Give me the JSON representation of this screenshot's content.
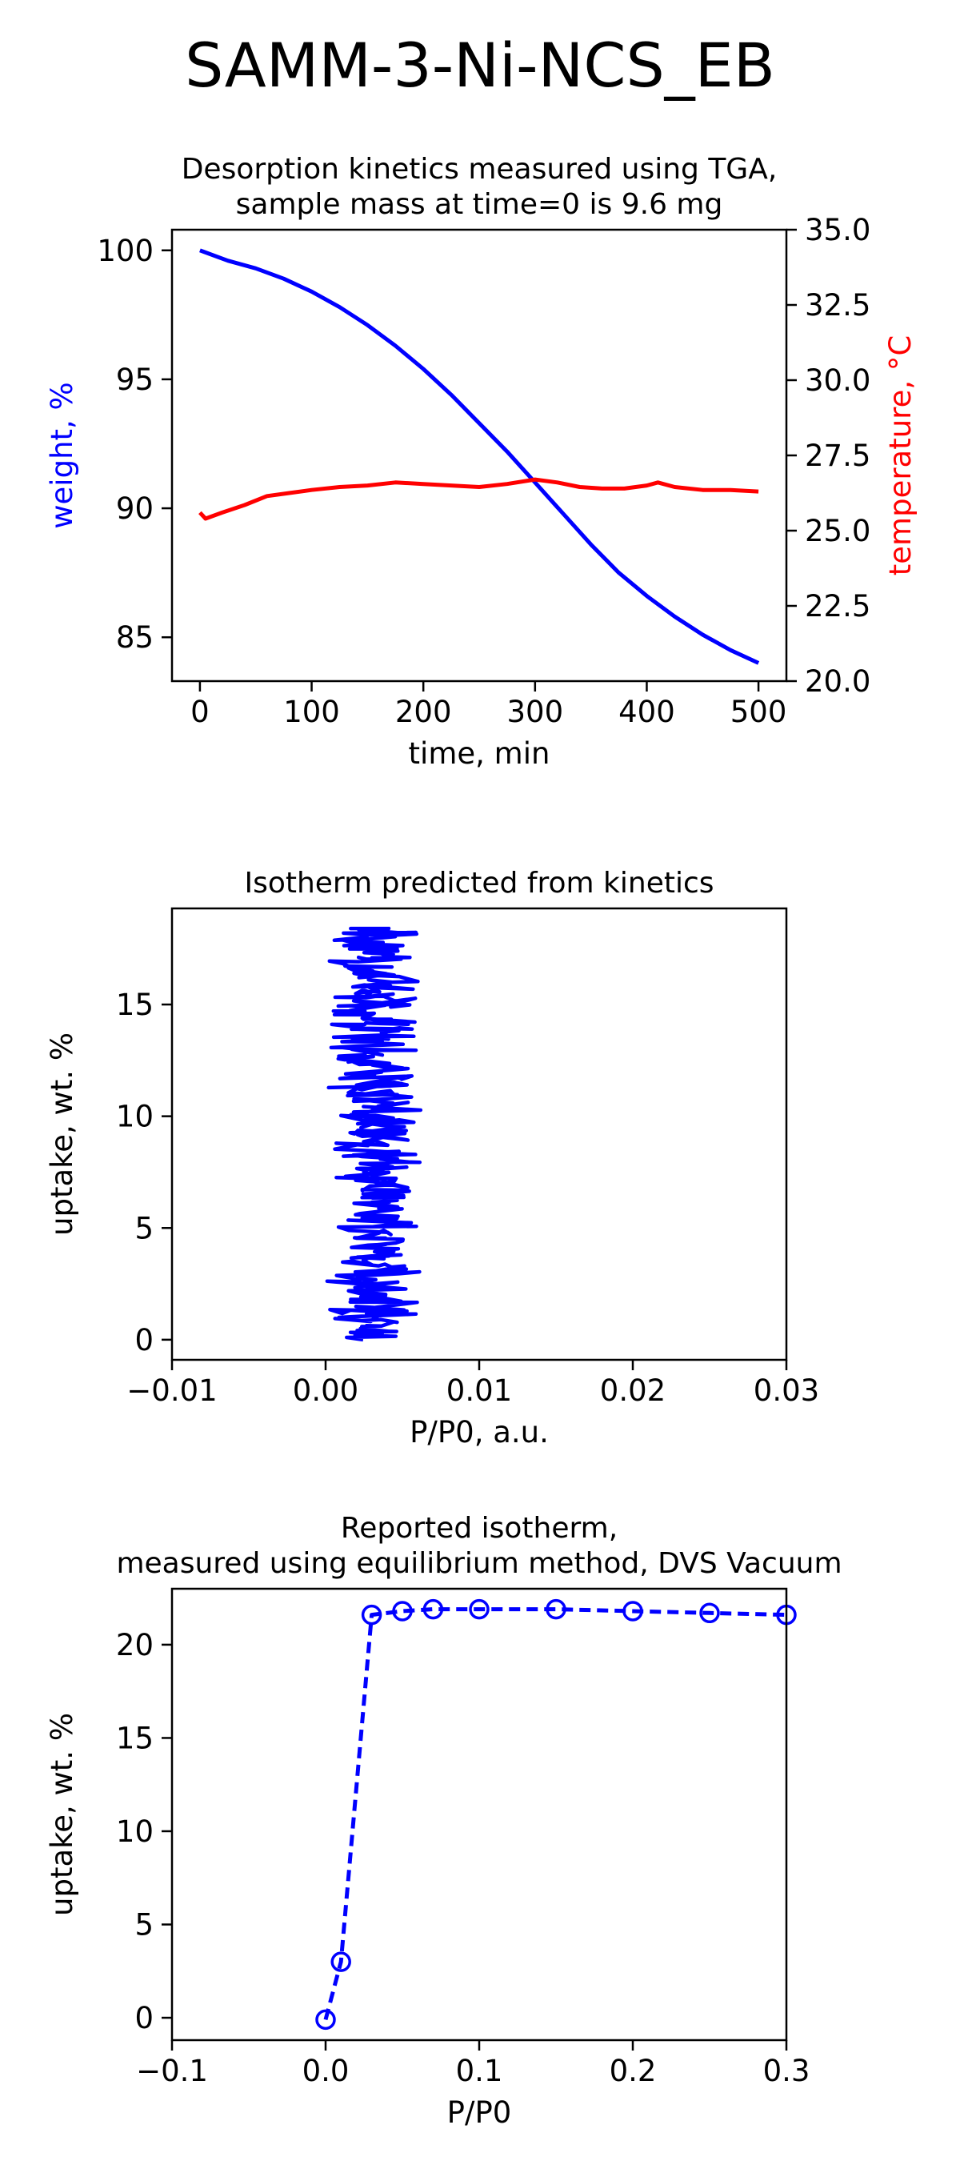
{
  "figure_title": "SAMM-3-Ni-NCS_EB",
  "colors": {
    "blue": "#0000ff",
    "red": "#ff0000",
    "axis": "#000000"
  },
  "chart_data": [
    {
      "type": "line",
      "title_lines": [
        "Desorption kinetics measured using TGA,",
        "sample mass at time=0 is 9.6 mg"
      ],
      "xlabel": "time, min",
      "ylabel": "weight, %",
      "ylabel_right": "temperature, °C",
      "xlim": [
        -25,
        525
      ],
      "ylim": [
        83.3,
        100.8
      ],
      "ylim_right": [
        20,
        35
      ],
      "xticks": [
        0,
        100,
        200,
        300,
        400,
        500
      ],
      "yticks": [
        85,
        90,
        95,
        100
      ],
      "yticks_right": [
        "20.0",
        "22.5",
        "25.0",
        "27.5",
        "30.0",
        "32.5",
        "35.0"
      ],
      "grid": false,
      "series": [
        {
          "axis": "left",
          "color": "#0000ff",
          "x": [
            0,
            25,
            50,
            75,
            100,
            125,
            150,
            175,
            200,
            225,
            250,
            275,
            300,
            325,
            350,
            375,
            400,
            425,
            450,
            475,
            500
          ],
          "y": [
            100,
            99.6,
            99.3,
            98.9,
            98.4,
            97.8,
            97.1,
            96.3,
            95.4,
            94.4,
            93.3,
            92.2,
            91.0,
            89.8,
            88.6,
            87.5,
            86.6,
            85.8,
            85.1,
            84.5,
            84.0
          ]
        },
        {
          "axis": "right",
          "color": "#ff0000",
          "x": [
            0,
            5,
            20,
            40,
            60,
            80,
            100,
            125,
            150,
            175,
            200,
            225,
            250,
            275,
            300,
            320,
            340,
            360,
            380,
            400,
            410,
            425,
            450,
            475,
            500
          ],
          "y": [
            25.6,
            25.4,
            25.6,
            25.85,
            26.15,
            26.25,
            26.35,
            26.45,
            26.5,
            26.6,
            26.55,
            26.5,
            26.45,
            26.55,
            26.7,
            26.6,
            26.45,
            26.4,
            26.4,
            26.5,
            26.6,
            26.45,
            26.35,
            26.35,
            26.3
          ]
        }
      ]
    },
    {
      "type": "line",
      "title_lines": [
        "Isotherm predicted from kinetics"
      ],
      "xlabel": "P/P0, a.u.",
      "ylabel": "uptake, wt. %",
      "xlim": [
        -0.01,
        0.03
      ],
      "ylim": [
        -0.9,
        19.3
      ],
      "xticks": [
        -0.01,
        0.0,
        0.01,
        0.02,
        0.03
      ],
      "xtick_labels": [
        "−0.01",
        "0.00",
        "0.01",
        "0.02",
        "0.03"
      ],
      "yticks": [
        0,
        5,
        10,
        15
      ],
      "grid": false,
      "series": [
        {
          "color": "#0000ff",
          "style": "noisy",
          "y_range": [
            0.0,
            18.4
          ],
          "x_center": 0.0031,
          "x_halfwidth": 0.0033
        }
      ]
    },
    {
      "type": "line",
      "title_lines": [
        "Reported isotherm,",
        "measured using equilibrium method, DVS Vacuum"
      ],
      "xlabel": "P/P0",
      "ylabel": "uptake, wt. %",
      "xlim": [
        -0.1,
        0.3
      ],
      "ylim": [
        -1.2,
        23.0
      ],
      "xticks": [
        -0.1,
        0.0,
        0.1,
        0.2,
        0.3
      ],
      "xtick_labels": [
        "−0.1",
        "0.0",
        "0.1",
        "0.2",
        "0.3"
      ],
      "yticks": [
        0,
        5,
        10,
        15,
        20
      ],
      "grid": false,
      "series": [
        {
          "color": "#0000ff",
          "style": "dashed-markers",
          "x": [
            0.0,
            0.01,
            0.03,
            0.05,
            0.07,
            0.1,
            0.15,
            0.2,
            0.25,
            0.3
          ],
          "y": [
            -0.1,
            3.0,
            21.6,
            21.8,
            21.9,
            21.9,
            21.9,
            21.8,
            21.7,
            21.6
          ]
        }
      ]
    }
  ]
}
